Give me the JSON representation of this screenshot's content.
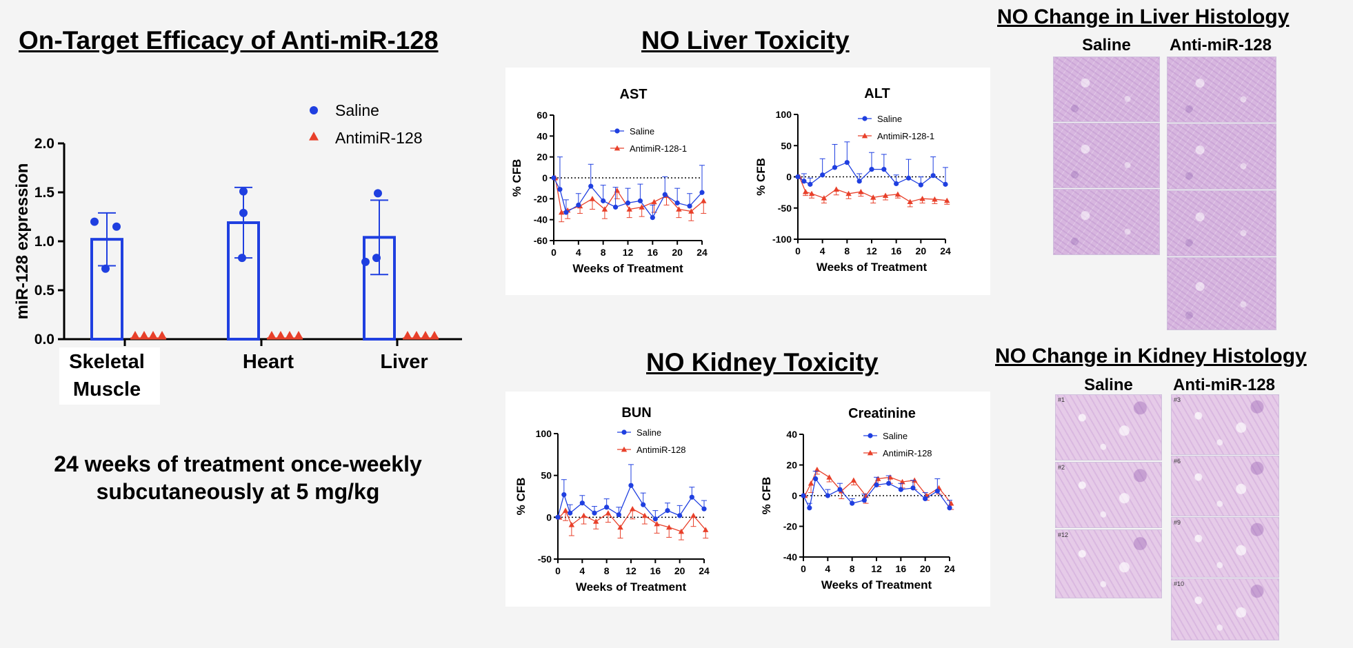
{
  "headings": {
    "efficacy": "On-Target Efficacy of Anti-miR-128",
    "liver_tox": "NO Liver Toxicity",
    "kidney_tox": "NO Kidney Toxicity",
    "liver_histo": "NO Change in Liver Histology",
    "kidney_histo": "NO Change in Kidney Histology"
  },
  "note": {
    "line1": "24 weeks of treatment once-weekly",
    "line2": "subcutaneously at 5 mg/kg"
  },
  "colors": {
    "saline": "#1f3fe0",
    "antimir": "#e8402a"
  },
  "histology": {
    "saline_label": "Saline",
    "antimir_label": "Anti-miR-128",
    "kidney_ids_saline": [
      "#1",
      "#2",
      "#12"
    ],
    "kidney_ids_antimir": [
      "#3",
      "#6",
      "#9",
      "#10"
    ]
  },
  "chart_data": [
    {
      "id": "efficacy",
      "type": "bar",
      "title": "On-Target Efficacy of Anti-miR-128",
      "ylabel": "miR-128 expression",
      "ylim": [
        0,
        2.0
      ],
      "yticks": [
        0.0,
        0.5,
        1.0,
        1.5,
        2.0
      ],
      "categories": [
        "Skeletal Muscle",
        "Heart",
        "Liver"
      ],
      "category_lines": [
        [
          "Skeletal",
          "Muscle"
        ],
        [
          "Heart"
        ],
        [
          "Liver"
        ]
      ],
      "legend": [
        "Saline",
        "AntimiR-128"
      ],
      "series": [
        {
          "name": "Saline",
          "values": [
            1.02,
            1.19,
            1.04
          ],
          "error": [
            0.27,
            0.36,
            0.38
          ],
          "points": [
            [
              1.2,
              1.15,
              0.72
            ],
            [
              1.51,
              1.29,
              0.83
            ],
            [
              1.49,
              0.79,
              0.83
            ]
          ]
        },
        {
          "name": "AntimiR-128",
          "values": [
            0.0,
            0.0,
            0.0
          ],
          "error": [
            0,
            0,
            0
          ],
          "points": [
            [
              0,
              0,
              0,
              0
            ],
            [
              0,
              0,
              0,
              0
            ],
            [
              0,
              0,
              0,
              0
            ]
          ]
        }
      ]
    },
    {
      "id": "ast",
      "type": "line",
      "title": "AST",
      "xlabel": "Weeks of Treatment",
      "ylabel": "% CFB",
      "ylim": [
        -60,
        60
      ],
      "yticks": [
        -60,
        -40,
        -20,
        0,
        20,
        40,
        60
      ],
      "xlim": [
        0,
        24
      ],
      "xticks": [
        0,
        4,
        8,
        12,
        16,
        20,
        24
      ],
      "x": [
        0,
        1,
        2,
        4,
        6,
        8,
        10,
        12,
        14,
        16,
        18,
        20,
        22,
        24
      ],
      "series": [
        {
          "name": "Saline",
          "values": [
            0,
            -11,
            -33,
            -26,
            -8,
            -22,
            -28,
            -24,
            -22,
            -38,
            -16,
            -24,
            -27,
            -14
          ],
          "error": [
            0,
            31,
            12,
            11,
            21,
            15,
            19,
            14,
            16,
            12,
            17,
            14,
            12,
            26
          ]
        },
        {
          "name": "AntimiR-128-1",
          "values": [
            0,
            -33,
            -31,
            -27,
            -20,
            -30,
            -12,
            -30,
            -28,
            -23,
            -17,
            -30,
            -32,
            -22
          ],
          "error": [
            0,
            9,
            8,
            7,
            10,
            9,
            8,
            8,
            9,
            10,
            9,
            8,
            9,
            12
          ]
        }
      ]
    },
    {
      "id": "alt",
      "type": "line",
      "title": "ALT",
      "xlabel": "Weeks of Treatment",
      "ylabel": "% CFB",
      "ylim": [
        -100,
        100
      ],
      "yticks": [
        -100,
        -50,
        0,
        50,
        100
      ],
      "xlim": [
        0,
        24
      ],
      "xticks": [
        0,
        4,
        8,
        12,
        16,
        20,
        24
      ],
      "x": [
        0,
        1,
        2,
        4,
        6,
        8,
        10,
        12,
        14,
        16,
        18,
        20,
        22,
        24
      ],
      "series": [
        {
          "name": "Saline",
          "values": [
            0,
            -7,
            -12,
            3,
            15,
            23,
            -7,
            12,
            12,
            -11,
            -2,
            -13,
            2,
            -12
          ],
          "error": [
            0,
            12,
            10,
            26,
            37,
            33,
            12,
            27,
            24,
            14,
            30,
            13,
            30,
            27
          ]
        },
        {
          "name": "AntimiR-128-1",
          "values": [
            0,
            -24,
            -27,
            -34,
            -20,
            -27,
            -24,
            -33,
            -30,
            -28,
            -40,
            -35,
            -36,
            -38
          ],
          "error": [
            0,
            6,
            7,
            8,
            9,
            8,
            7,
            9,
            7,
            6,
            8,
            7,
            7,
            6
          ]
        }
      ]
    },
    {
      "id": "bun",
      "type": "line",
      "title": "BUN",
      "xlabel": "Weeks of Treatment",
      "ylabel": "% CFB",
      "ylim": [
        -50,
        100
      ],
      "yticks": [
        -50,
        0,
        50,
        100
      ],
      "xlim": [
        0,
        24
      ],
      "xticks": [
        0,
        4,
        8,
        12,
        16,
        20,
        24
      ],
      "x": [
        0,
        1,
        2,
        4,
        6,
        8,
        10,
        12,
        14,
        16,
        18,
        20,
        22,
        24
      ],
      "series": [
        {
          "name": "Saline",
          "values": [
            0,
            27,
            5,
            17,
            5,
            12,
            3,
            38,
            15,
            -2,
            8,
            2,
            24,
            10
          ],
          "error": [
            0,
            18,
            10,
            9,
            8,
            10,
            9,
            25,
            14,
            10,
            9,
            12,
            12,
            10
          ]
        },
        {
          "name": "AntimiR-128",
          "values": [
            0,
            8,
            -9,
            2,
            -5,
            5,
            -12,
            10,
            2,
            -8,
            -12,
            -17,
            2,
            -15
          ],
          "error": [
            0,
            12,
            13,
            10,
            9,
            11,
            13,
            12,
            10,
            11,
            12,
            10,
            13,
            10
          ]
        }
      ]
    },
    {
      "id": "creatinine",
      "type": "line",
      "title": "Creatinine",
      "xlabel": "Weeks of Treatment",
      "ylabel": "% CFB",
      "ylim": [
        -40,
        40
      ],
      "yticks": [
        -40,
        -20,
        0,
        20,
        40
      ],
      "xlim": [
        0,
        24
      ],
      "xticks": [
        0,
        4,
        8,
        12,
        16,
        20,
        24
      ],
      "x": [
        0,
        1,
        2,
        4,
        6,
        8,
        10,
        12,
        14,
        16,
        18,
        20,
        22,
        24
      ],
      "series": [
        {
          "name": "Saline",
          "values": [
            0,
            -8,
            11,
            0,
            4,
            -5,
            -3,
            7,
            8,
            4,
            5,
            -2,
            3,
            -8
          ],
          "error": [
            0,
            3,
            5,
            4,
            4,
            3,
            4,
            5,
            5,
            4,
            5,
            4,
            8,
            5
          ]
        },
        {
          "name": "AntimiR-128",
          "values": [
            0,
            8,
            17,
            12,
            3,
            10,
            0,
            11,
            12,
            9,
            10,
            0,
            5,
            -5
          ],
          "error": [
            0,
            6,
            3,
            3,
            5,
            3,
            5,
            5,
            4,
            4,
            6,
            3,
            4,
            4
          ]
        }
      ]
    }
  ]
}
